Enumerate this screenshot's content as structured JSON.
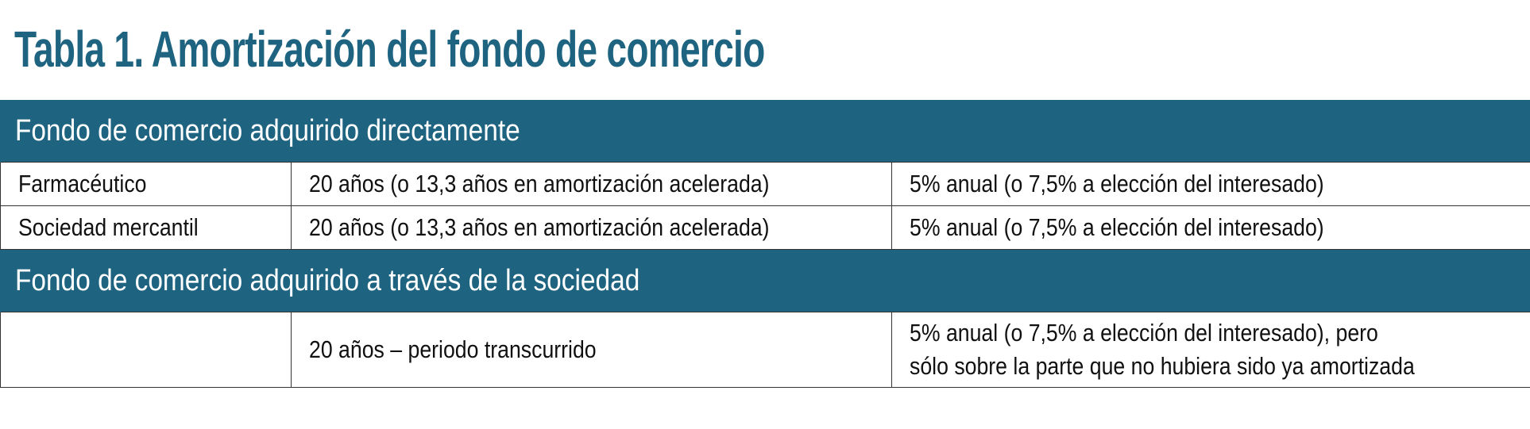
{
  "title": "Tabla 1. Amortización del fondo de comercio",
  "sections": [
    {
      "heading": "Fondo de comercio adquirido directamente",
      "rows": [
        {
          "tipo": "Farmacéutico",
          "periodo": "20 años (o 13,3 años en amortización acelerada)",
          "tasa": "5% anual (o 7,5% a elección del interesado)"
        },
        {
          "tipo": "Sociedad mercantil",
          "periodo": "20 años (o 13,3 años en amortización acelerada)",
          "tasa": "5% anual (o 7,5% a elección del interesado)"
        }
      ]
    },
    {
      "heading": "Fondo de comercio adquirido a través de la sociedad",
      "rows": [
        {
          "tipo": "",
          "periodo": "20 años – periodo transcurrido",
          "tasa_line1": "5% anual (o 7,5% a elección del interesado), pero",
          "tasa_line2": "sólo sobre la parte que no hubiera sido ya amortizada"
        }
      ]
    }
  ],
  "colors": {
    "accent": "#1e6481",
    "border": "#333333",
    "text": "#111111"
  }
}
